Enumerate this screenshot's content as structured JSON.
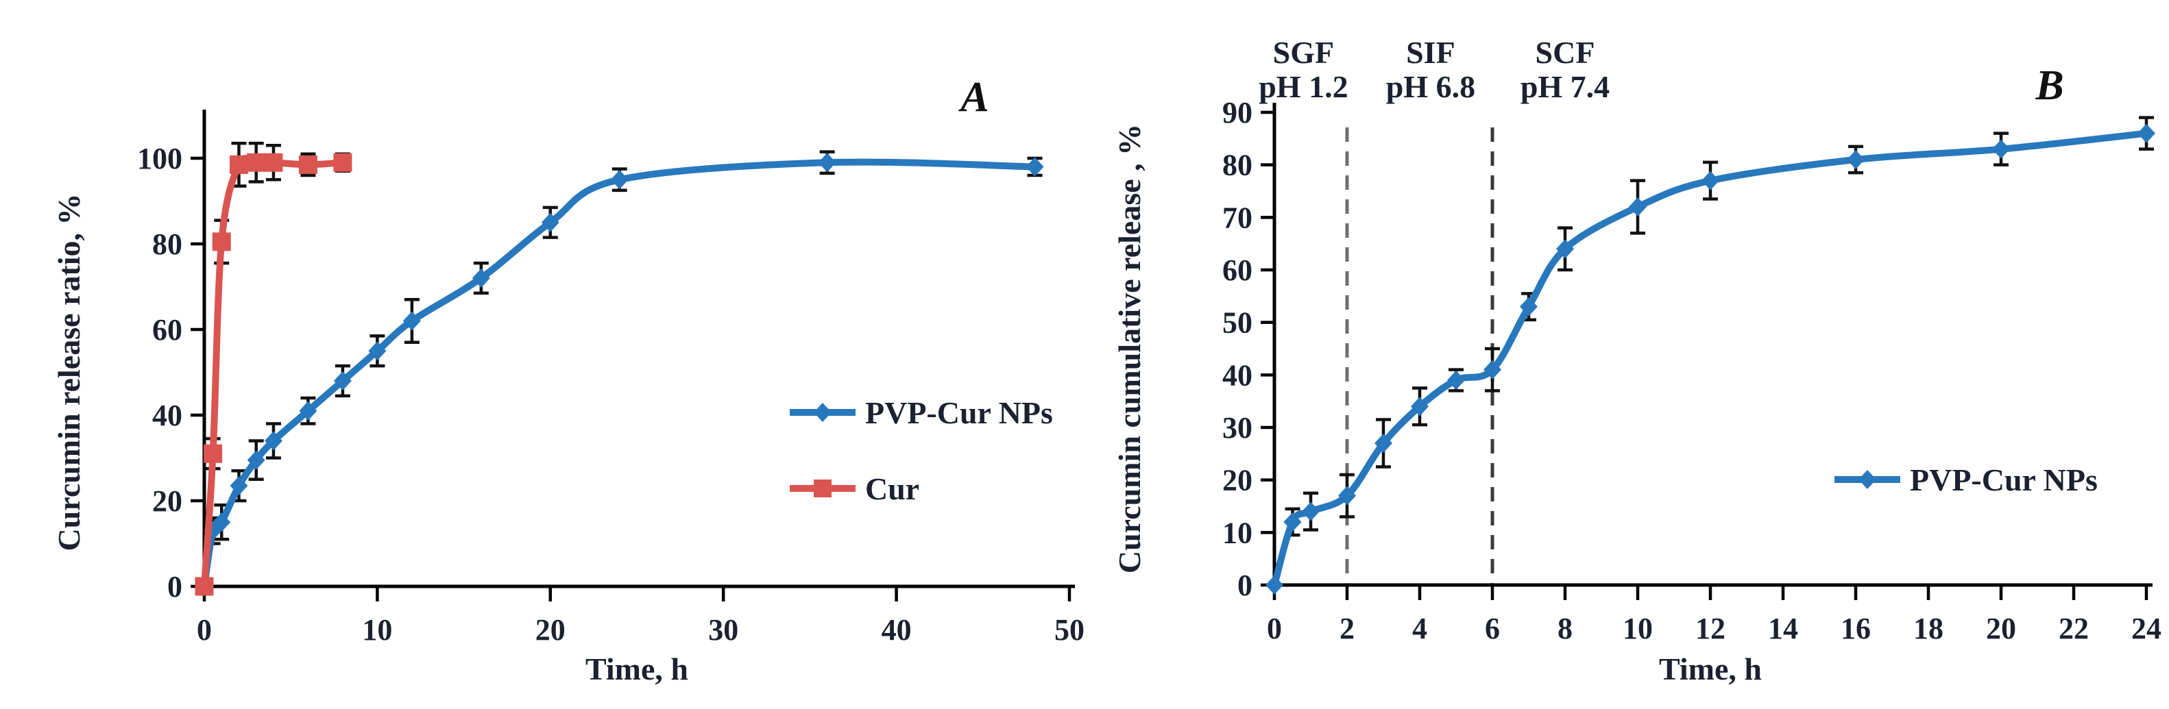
{
  "figure": {
    "background": "#ffffff",
    "text_color": "#1b2130",
    "axis_color": "#000000",
    "error_bar_color": "#111111"
  },
  "chart_data": [
    {
      "id": "A",
      "type": "line",
      "panel_label": "A",
      "xlabel": "Time, h",
      "ylabel": "Curcumin release ratio, %",
      "xlim": [
        0,
        50
      ],
      "ylim": [
        0,
        100
      ],
      "xticks": [
        0,
        10,
        20,
        30,
        40,
        50
      ],
      "yticks": [
        0,
        20,
        40,
        60,
        80,
        100
      ],
      "grid": false,
      "legend_position": "right-middle",
      "series": [
        {
          "name": "PVP-Cur NPs",
          "color": "#2878be",
          "marker": "diamond",
          "x": [
            0,
            0.5,
            1,
            2,
            3,
            4,
            6,
            8,
            10,
            12,
            16,
            20,
            24,
            36,
            48
          ],
          "y": [
            0,
            13,
            15,
            23.5,
            29.5,
            34,
            41,
            48,
            55,
            62,
            72,
            85,
            95,
            99,
            98
          ],
          "yerr": [
            0,
            3,
            4,
            3.5,
            4.5,
            4,
            3,
            3.5,
            3.5,
            5,
            3.5,
            3.5,
            2.5,
            2.5,
            2
          ]
        },
        {
          "name": "Cur",
          "color": "#da5450",
          "marker": "square",
          "x": [
            0,
            0.5,
            1,
            2,
            3,
            4,
            6,
            8
          ],
          "y": [
            0,
            31,
            80.5,
            98.5,
            99,
            99,
            98.5,
            99
          ],
          "yerr": [
            0,
            3.5,
            5,
            5,
            4.5,
            4,
            2.5,
            2
          ]
        }
      ]
    },
    {
      "id": "B",
      "type": "line",
      "panel_label": "B",
      "xlabel": "Time, h",
      "ylabel": "Curcumin cumulative release , %",
      "xlim": [
        0,
        24
      ],
      "ylim": [
        0,
        90
      ],
      "xticks": [
        0,
        2,
        4,
        6,
        8,
        10,
        12,
        14,
        16,
        18,
        20,
        22,
        24
      ],
      "yticks": [
        0,
        10,
        20,
        30,
        40,
        50,
        60,
        70,
        80,
        90
      ],
      "grid": false,
      "legend_position": "right-middle",
      "vlines": [
        {
          "x": 2,
          "color": "#6e6e6e",
          "style": "dashed"
        },
        {
          "x": 6,
          "color": "#3a3a3a",
          "style": "dashed"
        }
      ],
      "annotations": [
        {
          "line1": "SGF",
          "line2": "pH 1.2",
          "x": 0.8
        },
        {
          "line1": "SIF",
          "line2": "pH 6.8",
          "x": 4.3
        },
        {
          "line1": "SCF",
          "line2": "pH 7.4",
          "x": 8.0
        }
      ],
      "series": [
        {
          "name": "PVP-Cur NPs",
          "color": "#2878be",
          "marker": "diamond",
          "x": [
            0,
            0.5,
            1,
            2,
            3,
            4,
            5,
            6,
            7,
            8,
            10,
            12,
            16,
            20,
            24
          ],
          "y": [
            0,
            12,
            14,
            17,
            27,
            34,
            39,
            41,
            53,
            64,
            72,
            77,
            81,
            83,
            86
          ],
          "yerr": [
            0,
            2.5,
            3.5,
            4,
            4.5,
            3.5,
            2,
            4,
            2.5,
            4,
            5,
            3.5,
            2.5,
            3,
            3
          ]
        }
      ]
    }
  ]
}
